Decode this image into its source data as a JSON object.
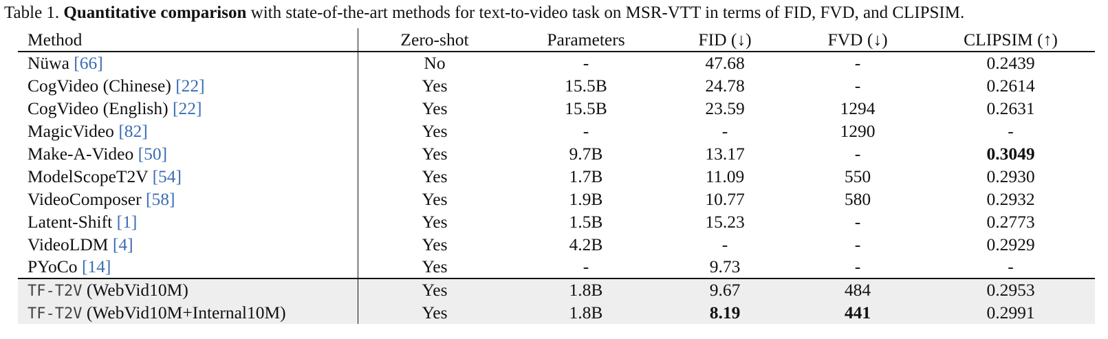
{
  "caption": {
    "label": "Table 1.",
    "bold": "Quantitative comparison",
    "rest": "with state-of-the-art methods for text-to-video task on MSR-VTT in terms of FID, FVD, and CLIPSIM."
  },
  "table": {
    "headers": {
      "method": "Method",
      "zero_shot": "Zero-shot",
      "parameters": "Parameters",
      "fid": "FID (↓)",
      "fvd": "FVD (↓)",
      "clipsim": "CLIPSIM (↑)"
    },
    "rows": [
      {
        "name": "Nüwa ",
        "cite": "[66]",
        "zero_shot": "No",
        "params": "-",
        "fid": "47.68",
        "fvd": "-",
        "clipsim": "0.2439"
      },
      {
        "name": "CogVideo (Chinese) ",
        "cite": "[22]",
        "zero_shot": "Yes",
        "params": "15.5B",
        "fid": "24.78",
        "fvd": "-",
        "clipsim": "0.2614"
      },
      {
        "name": "CogVideo (English) ",
        "cite": "[22]",
        "zero_shot": "Yes",
        "params": "15.5B",
        "fid": "23.59",
        "fvd": "1294",
        "clipsim": "0.2631"
      },
      {
        "name": "MagicVideo ",
        "cite": "[82]",
        "zero_shot": "Yes",
        "params": "-",
        "fid": "-",
        "fvd": "1290",
        "clipsim": "-"
      },
      {
        "name": "Make-A-Video ",
        "cite": "[50]",
        "zero_shot": "Yes",
        "params": "9.7B",
        "fid": "13.17",
        "fvd": "-",
        "clipsim": "0.3049"
      },
      {
        "name": "ModelScopeT2V ",
        "cite": "[54]",
        "zero_shot": "Yes",
        "params": "1.7B",
        "fid": "11.09",
        "fvd": "550",
        "clipsim": "0.2930"
      },
      {
        "name": "VideoComposer ",
        "cite": "[58]",
        "zero_shot": "Yes",
        "params": "1.9B",
        "fid": "10.77",
        "fvd": "580",
        "clipsim": "0.2932"
      },
      {
        "name": "Latent-Shift ",
        "cite": "[1]",
        "zero_shot": "Yes",
        "params": "1.5B",
        "fid": "15.23",
        "fvd": "-",
        "clipsim": "0.2773"
      },
      {
        "name": "VideoLDM ",
        "cite": "[4]",
        "zero_shot": "Yes",
        "params": "4.2B",
        "fid": "-",
        "fvd": "-",
        "clipsim": "0.2929"
      },
      {
        "name": "PYoCo ",
        "cite": "[14]",
        "zero_shot": "Yes",
        "params": "-",
        "fid": "9.73",
        "fvd": "-",
        "clipsim": "-"
      }
    ],
    "ours": [
      {
        "mono": "TF-T2V",
        "name": " (WebVid10M)",
        "zero_shot": "Yes",
        "params": "1.8B",
        "fid": "9.67",
        "fvd": "484",
        "clipsim": "0.2953"
      },
      {
        "mono": "TF-T2V",
        "name": " (WebVid10M+Internal10M)",
        "zero_shot": "Yes",
        "params": "1.8B",
        "fid": "8.19",
        "fvd": "441",
        "clipsim": "0.2991"
      }
    ]
  }
}
